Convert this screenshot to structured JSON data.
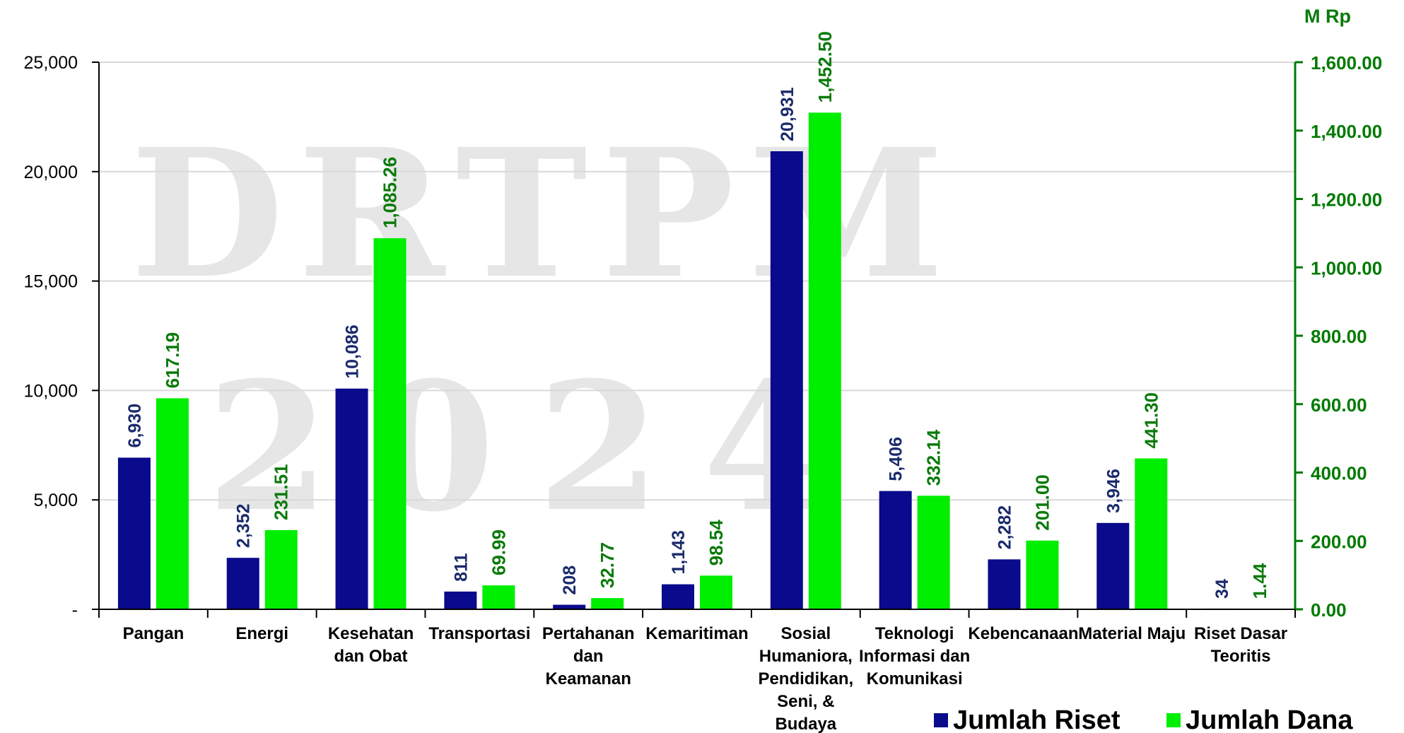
{
  "chart_data": {
    "type": "bar",
    "watermark": [
      "DRTPM",
      "2024"
    ],
    "right_axis_unit": "M Rp",
    "categories": [
      [
        "Pangan"
      ],
      [
        "Energi"
      ],
      [
        "Kesehatan",
        "dan Obat"
      ],
      [
        "Transportasi"
      ],
      [
        "Pertahanan",
        "dan",
        "Keamanan"
      ],
      [
        "Kemaritiman"
      ],
      [
        "Sosial",
        "Humaniora,",
        "Pendidikan,",
        "Seni, &",
        "Budaya"
      ],
      [
        "Teknologi",
        "Informasi dan",
        "Komunikasi"
      ],
      [
        "Kebencanaan"
      ],
      [
        "Material Maju"
      ],
      [
        "Riset Dasar",
        "Teoritis"
      ]
    ],
    "series": [
      {
        "name": "Jumlah Riset",
        "axis": "left",
        "color": "#0a0a8c",
        "values": [
          6930,
          2352,
          10086,
          811,
          208,
          1143,
          20931,
          5406,
          2282,
          3946,
          34
        ],
        "labels": [
          "6,930",
          "2,352",
          "10,086",
          "811",
          "208",
          "1,143",
          "20,931",
          "5,406",
          "2,282",
          "3,946",
          "34"
        ]
      },
      {
        "name": "Jumlah Dana",
        "axis": "right",
        "color": "#00ee00",
        "values": [
          617.19,
          231.51,
          1085.26,
          69.99,
          32.77,
          98.54,
          1452.5,
          332.14,
          201.0,
          441.3,
          1.44
        ],
        "labels": [
          "617.19",
          "231.51",
          "1,085.26",
          "69.99",
          "32.77",
          "98.54",
          "1,452.50",
          "332.14",
          "201.00",
          "441.30",
          "1.44"
        ]
      }
    ],
    "y_left": {
      "min": 0,
      "max": 25000,
      "ticks": [
        0,
        5000,
        10000,
        15000,
        20000,
        25000
      ],
      "tick_labels": [
        "-",
        "5,000",
        "10,000",
        "15,000",
        "20,000",
        "25,000"
      ]
    },
    "y_right": {
      "min": 0,
      "max": 1600,
      "ticks": [
        0,
        200,
        400,
        600,
        800,
        1000,
        1200,
        1400,
        1600
      ],
      "tick_labels": [
        "0.00",
        "200.00",
        "400.00",
        "600.00",
        "800.00",
        "1,000.00",
        "1,200.00",
        "1,400.00",
        "1,600.00"
      ]
    },
    "grid": true,
    "legend_position": "bottom-right"
  }
}
